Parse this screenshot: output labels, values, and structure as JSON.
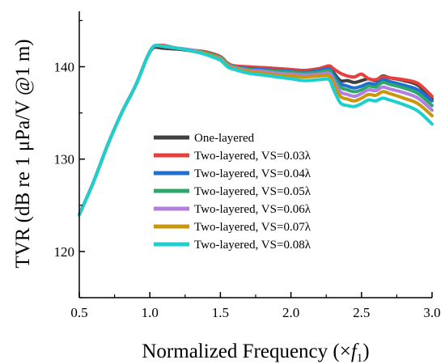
{
  "chart_data": {
    "type": "line",
    "xlabel": "Normalized Frequency (×",
    "xlabel_var": "f",
    "xlabel_sub": "1",
    "xlabel_end": ")",
    "ylabel": "TVR (dB re 1 μPa/V @1 m)",
    "xlim": [
      0.5,
      3.0
    ],
    "ylim": [
      115,
      146
    ],
    "xticks": [
      "0.5",
      "1.0",
      "1.5",
      "2.0",
      "2.5",
      "3.0"
    ],
    "xtick_values": [
      0.5,
      1.0,
      1.5,
      2.0,
      2.5,
      3.0
    ],
    "yticks": [
      "120",
      "130",
      "140"
    ],
    "ytick_values": [
      120,
      130,
      140
    ],
    "grid": false,
    "legend_placement": "center-right",
    "series": [
      {
        "name": "One-layered",
        "color": "#404040",
        "points": [
          [
            0.5,
            124
          ],
          [
            0.6,
            127.5
          ],
          [
            0.7,
            131.5
          ],
          [
            0.8,
            135
          ],
          [
            0.9,
            138
          ],
          [
            0.98,
            141
          ],
          [
            1.02,
            142
          ],
          [
            1.05,
            142.1
          ],
          [
            1.1,
            142
          ],
          [
            1.2,
            141.9
          ],
          [
            1.3,
            141.7
          ],
          [
            1.4,
            141.5
          ],
          [
            1.5,
            141
          ],
          [
            1.55,
            140.3
          ],
          [
            1.6,
            140
          ],
          [
            1.7,
            139.9
          ],
          [
            1.8,
            139.9
          ],
          [
            1.9,
            139.8
          ],
          [
            2.0,
            139.7
          ],
          [
            2.1,
            139.6
          ],
          [
            2.2,
            139.8
          ],
          [
            2.27,
            140
          ],
          [
            2.3,
            139.4
          ],
          [
            2.35,
            138.5
          ],
          [
            2.4,
            138.5
          ],
          [
            2.45,
            138.3
          ],
          [
            2.5,
            138.5
          ],
          [
            2.55,
            138.7
          ],
          [
            2.6,
            138.5
          ],
          [
            2.65,
            139
          ],
          [
            2.7,
            138.8
          ],
          [
            2.8,
            138.5
          ],
          [
            2.9,
            138
          ],
          [
            3.0,
            136.5
          ]
        ]
      },
      {
        "name": "Two-layered, VS=0.03λ",
        "color": "#e83e3e",
        "points": [
          [
            0.5,
            124
          ],
          [
            0.6,
            127.5
          ],
          [
            0.7,
            131.5
          ],
          [
            0.8,
            135
          ],
          [
            0.9,
            138
          ],
          [
            0.98,
            141
          ],
          [
            1.02,
            142.1
          ],
          [
            1.05,
            142.3
          ],
          [
            1.1,
            142.3
          ],
          [
            1.2,
            142
          ],
          [
            1.3,
            141.8
          ],
          [
            1.4,
            141.6
          ],
          [
            1.5,
            141.1
          ],
          [
            1.55,
            140.4
          ],
          [
            1.6,
            140.1
          ],
          [
            1.7,
            140
          ],
          [
            1.8,
            139.9
          ],
          [
            1.9,
            139.8
          ],
          [
            2.0,
            139.7
          ],
          [
            2.1,
            139.6
          ],
          [
            2.2,
            139.8
          ],
          [
            2.27,
            140.1
          ],
          [
            2.3,
            139.8
          ],
          [
            2.35,
            139.3
          ],
          [
            2.4,
            139
          ],
          [
            2.45,
            138.9
          ],
          [
            2.5,
            139.2
          ],
          [
            2.55,
            138.7
          ],
          [
            2.6,
            138.6
          ],
          [
            2.65,
            138.9
          ],
          [
            2.7,
            138.8
          ],
          [
            2.8,
            138.6
          ],
          [
            2.9,
            138.2
          ],
          [
            3.0,
            136.8
          ]
        ]
      },
      {
        "name": "Two-layered, VS=0.04λ",
        "color": "#1f6fd1",
        "points": [
          [
            0.5,
            124
          ],
          [
            0.6,
            127.5
          ],
          [
            0.7,
            131.5
          ],
          [
            0.8,
            135
          ],
          [
            0.9,
            138
          ],
          [
            0.98,
            141
          ],
          [
            1.02,
            142.1
          ],
          [
            1.05,
            142.3
          ],
          [
            1.1,
            142.2
          ],
          [
            1.2,
            142
          ],
          [
            1.3,
            141.8
          ],
          [
            1.4,
            141.5
          ],
          [
            1.5,
            141
          ],
          [
            1.55,
            140.3
          ],
          [
            1.6,
            140
          ],
          [
            1.7,
            139.8
          ],
          [
            1.8,
            139.7
          ],
          [
            1.9,
            139.6
          ],
          [
            2.0,
            139.5
          ],
          [
            2.1,
            139.4
          ],
          [
            2.2,
            139.6
          ],
          [
            2.27,
            139.8
          ],
          [
            2.3,
            139.2
          ],
          [
            2.35,
            138.2
          ],
          [
            2.4,
            137.9
          ],
          [
            2.45,
            137.7
          ],
          [
            2.5,
            137.9
          ],
          [
            2.55,
            138.2
          ],
          [
            2.6,
            138.1
          ],
          [
            2.65,
            138.6
          ],
          [
            2.7,
            138.4
          ],
          [
            2.8,
            138
          ],
          [
            2.9,
            137.5
          ],
          [
            3.0,
            136.3
          ]
        ]
      },
      {
        "name": "Two-layered, VS=0.05λ",
        "color": "#2ea86a",
        "points": [
          [
            0.5,
            124
          ],
          [
            0.6,
            127.5
          ],
          [
            0.7,
            131.5
          ],
          [
            0.8,
            135
          ],
          [
            0.9,
            138
          ],
          [
            0.98,
            141
          ],
          [
            1.02,
            142.1
          ],
          [
            1.05,
            142.3
          ],
          [
            1.1,
            142.2
          ],
          [
            1.2,
            142
          ],
          [
            1.3,
            141.8
          ],
          [
            1.4,
            141.5
          ],
          [
            1.5,
            141
          ],
          [
            1.55,
            140.3
          ],
          [
            1.6,
            140
          ],
          [
            1.7,
            139.7
          ],
          [
            1.8,
            139.6
          ],
          [
            1.9,
            139.5
          ],
          [
            2.0,
            139.4
          ],
          [
            2.1,
            139.3
          ],
          [
            2.2,
            139.4
          ],
          [
            2.27,
            139.6
          ],
          [
            2.3,
            138.9
          ],
          [
            2.35,
            137.8
          ],
          [
            2.4,
            137.5
          ],
          [
            2.45,
            137.3
          ],
          [
            2.5,
            137.5
          ],
          [
            2.55,
            137.9
          ],
          [
            2.6,
            137.8
          ],
          [
            2.65,
            138.3
          ],
          [
            2.7,
            138.1
          ],
          [
            2.8,
            137.7
          ],
          [
            2.9,
            137.1
          ],
          [
            3.0,
            135.8
          ]
        ]
      },
      {
        "name": "Two-layered, VS=0.06λ",
        "color": "#b07fe0",
        "points": [
          [
            0.5,
            124
          ],
          [
            0.6,
            127.5
          ],
          [
            0.7,
            131.5
          ],
          [
            0.8,
            135
          ],
          [
            0.9,
            138
          ],
          [
            0.98,
            141
          ],
          [
            1.02,
            142.1
          ],
          [
            1.05,
            142.3
          ],
          [
            1.1,
            142.2
          ],
          [
            1.2,
            142
          ],
          [
            1.3,
            141.8
          ],
          [
            1.4,
            141.4
          ],
          [
            1.5,
            140.9
          ],
          [
            1.55,
            140.2
          ],
          [
            1.6,
            139.9
          ],
          [
            1.7,
            139.6
          ],
          [
            1.8,
            139.5
          ],
          [
            1.9,
            139.3
          ],
          [
            2.0,
            139.2
          ],
          [
            2.1,
            139.1
          ],
          [
            2.2,
            139.2
          ],
          [
            2.27,
            139.3
          ],
          [
            2.3,
            138.6
          ],
          [
            2.35,
            137.3
          ],
          [
            2.4,
            137
          ],
          [
            2.45,
            136.8
          ],
          [
            2.5,
            137.1
          ],
          [
            2.55,
            137.5
          ],
          [
            2.6,
            137.4
          ],
          [
            2.65,
            137.8
          ],
          [
            2.7,
            137.6
          ],
          [
            2.8,
            137.2
          ],
          [
            2.9,
            136.6
          ],
          [
            3.0,
            135.3
          ]
        ]
      },
      {
        "name": "Two-layered, VS=0.07λ",
        "color": "#c9960c",
        "points": [
          [
            0.5,
            124
          ],
          [
            0.6,
            127.5
          ],
          [
            0.7,
            131.5
          ],
          [
            0.8,
            135
          ],
          [
            0.9,
            138
          ],
          [
            0.98,
            141
          ],
          [
            1.02,
            142.1
          ],
          [
            1.05,
            142.3
          ],
          [
            1.1,
            142.2
          ],
          [
            1.2,
            142
          ],
          [
            1.3,
            141.7
          ],
          [
            1.4,
            141.4
          ],
          [
            1.5,
            140.8
          ],
          [
            1.55,
            140.1
          ],
          [
            1.6,
            139.8
          ],
          [
            1.7,
            139.5
          ],
          [
            1.8,
            139.3
          ],
          [
            1.9,
            139.1
          ],
          [
            2.0,
            139
          ],
          [
            2.1,
            138.9
          ],
          [
            2.2,
            139
          ],
          [
            2.27,
            139
          ],
          [
            2.3,
            138.2
          ],
          [
            2.35,
            136.8
          ],
          [
            2.4,
            136.5
          ],
          [
            2.45,
            136.3
          ],
          [
            2.5,
            136.6
          ],
          [
            2.55,
            137
          ],
          [
            2.6,
            136.9
          ],
          [
            2.65,
            137.3
          ],
          [
            2.7,
            137.1
          ],
          [
            2.8,
            136.6
          ],
          [
            2.9,
            136
          ],
          [
            3.0,
            134.7
          ]
        ]
      },
      {
        "name": "Two-layered, VS=0.08λ",
        "color": "#1fcfcf",
        "points": [
          [
            0.5,
            124
          ],
          [
            0.6,
            127.5
          ],
          [
            0.7,
            131.5
          ],
          [
            0.8,
            135
          ],
          [
            0.9,
            138
          ],
          [
            0.98,
            141
          ],
          [
            1.02,
            142.1
          ],
          [
            1.05,
            142.3
          ],
          [
            1.1,
            142.2
          ],
          [
            1.2,
            142
          ],
          [
            1.3,
            141.7
          ],
          [
            1.4,
            141.3
          ],
          [
            1.5,
            140.7
          ],
          [
            1.55,
            140
          ],
          [
            1.6,
            139.7
          ],
          [
            1.7,
            139.3
          ],
          [
            1.8,
            139.1
          ],
          [
            1.9,
            138.9
          ],
          [
            2.0,
            138.7
          ],
          [
            2.1,
            138.5
          ],
          [
            2.2,
            138.6
          ],
          [
            2.27,
            138.6
          ],
          [
            2.3,
            137.6
          ],
          [
            2.35,
            136.1
          ],
          [
            2.4,
            135.8
          ],
          [
            2.45,
            135.7
          ],
          [
            2.5,
            136
          ],
          [
            2.55,
            136.4
          ],
          [
            2.6,
            136.3
          ],
          [
            2.65,
            136.6
          ],
          [
            2.7,
            136.4
          ],
          [
            2.8,
            135.9
          ],
          [
            2.9,
            135.2
          ],
          [
            3.0,
            133.8
          ]
        ]
      }
    ]
  }
}
